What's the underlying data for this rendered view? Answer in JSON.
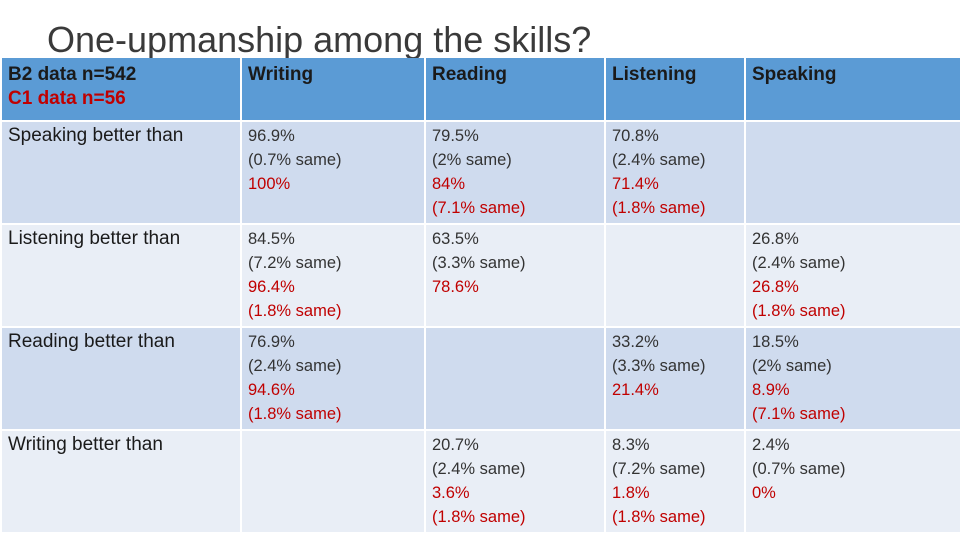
{
  "title": "One-upmanship among the skills?",
  "header": {
    "b2_label": "B2 data n=542",
    "c1_label": "C1 data n=56",
    "columns": [
      "Writing",
      "Reading",
      "Listening",
      "Speaking"
    ]
  },
  "rows": [
    {
      "label": "Speaking better than",
      "cells": [
        {
          "b2": "96.9%",
          "b2_same": "(0.7% same)",
          "c1": "100%",
          "c1_same": ""
        },
        {
          "b2": "79.5%",
          "b2_same": "(2% same)",
          "c1": "84%",
          "c1_same": "(7.1% same)"
        },
        {
          "b2": "70.8%",
          "b2_same": "(2.4% same)",
          "c1": "71.4%",
          "c1_same": "(1.8% same)"
        },
        {
          "b2": "",
          "b2_same": "",
          "c1": "",
          "c1_same": ""
        }
      ]
    },
    {
      "label": "Listening better than",
      "cells": [
        {
          "b2": "84.5%",
          "b2_same": "(7.2% same)",
          "c1": "96.4%",
          "c1_same": "(1.8% same)"
        },
        {
          "b2": "63.5%",
          "b2_same": "(3.3% same)",
          "c1": "78.6%",
          "c1_same": ""
        },
        {
          "b2": "",
          "b2_same": "",
          "c1": "",
          "c1_same": ""
        },
        {
          "b2": "26.8%",
          "b2_same": "(2.4% same)",
          "c1": "26.8%",
          "c1_same": "(1.8% same)"
        }
      ]
    },
    {
      "label": "Reading better than",
      "cells": [
        {
          "b2": "76.9%",
          "b2_same": "(2.4% same)",
          "c1": "94.6%",
          "c1_same": "(1.8% same)"
        },
        {
          "b2": "",
          "b2_same": "",
          "c1": "",
          "c1_same": ""
        },
        {
          "b2": "33.2%",
          "b2_same": "(3.3% same)",
          "c1": "21.4%",
          "c1_same": ""
        },
        {
          "b2": "18.5%",
          "b2_same": "(2% same)",
          "c1": "8.9%",
          "c1_same": "(7.1% same)"
        }
      ]
    },
    {
      "label": "Writing better than",
      "cells": [
        {
          "b2": "",
          "b2_same": "",
          "c1": "",
          "c1_same": ""
        },
        {
          "b2": "20.7%",
          "b2_same": "(2.4% same)",
          "c1": "3.6%",
          "c1_same": "(1.8% same)"
        },
        {
          "b2": "8.3%",
          "b2_same": "(7.2% same)",
          "c1": "1.8%",
          "c1_same": "(1.8% same)"
        },
        {
          "b2": "2.4%",
          "b2_same": "(0.7% same)",
          "c1": "0%",
          "c1_same": ""
        }
      ]
    }
  ],
  "colors": {
    "header_bg": "#5b9bd5",
    "row_dark": "#cfdbee",
    "row_light": "#e9eef6",
    "c1_text": "#c00000"
  }
}
